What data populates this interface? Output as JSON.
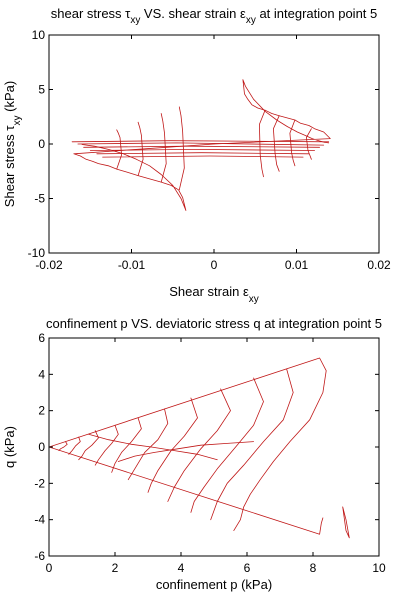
{
  "chart_data": [
    {
      "type": "line",
      "title_parts": [
        "shear stress ",
        "τ",
        "xy",
        " VS. shear strain ",
        "ε",
        "xy",
        " at integration point 5"
      ],
      "xlabel_parts": [
        "Shear strain ",
        "ε",
        "xy"
      ],
      "ylabel_parts": [
        "Shear stress ",
        "τ",
        "xy",
        " (kPa)"
      ],
      "xlim": [
        -0.02,
        0.02
      ],
      "ylim": [
        -10,
        10
      ],
      "xticks": [
        -0.02,
        -0.01,
        0,
        0.01,
        0.02
      ],
      "yticks": [
        -10,
        -5,
        0,
        5,
        10
      ],
      "xtick_labels": [
        "-0.02",
        "-0.01",
        "0",
        "0.01",
        "0.02"
      ],
      "ytick_labels": [
        "-10",
        "-5",
        "0",
        "5",
        "10"
      ],
      "grid": false,
      "color": "#c01818",
      "series": [
        {
          "x": [
            0,
            0.0141,
            0.0133,
            0.0122,
            0.0115,
            0.0105,
            0.0098,
            0.0088,
            0.0079,
            0.007,
            0.0062,
            0.0053,
            0.0046,
            0.0041,
            0.0037,
            0.0035,
            0.0038,
            0.0048,
            0.0062,
            0.0076,
            0.0089,
            0.0101,
            0.011,
            0.0119,
            0.0127,
            0.0134,
            0.0139
          ],
          "y": [
            0,
            0.5,
            1.1,
            1.4,
            1.7,
            1.9,
            2.2,
            2.4,
            2.6,
            2.8,
            3.1,
            3.3,
            3.6,
            4.1,
            4.6,
            5.9,
            5.3,
            4.1,
            3.0,
            2.2,
            1.6,
            1.1,
            0.8,
            0.5,
            0.3,
            0.15,
            0.1
          ]
        },
        {
          "x": [
            0,
            -0.017,
            -0.0162,
            -0.0155,
            -0.0147,
            -0.014,
            -0.0128,
            -0.0118,
            -0.0105,
            -0.0092,
            -0.0078,
            -0.0064,
            -0.0052,
            -0.0043,
            -0.0038,
            -0.0034,
            -0.004,
            -0.005,
            -0.0064,
            -0.0078,
            -0.0094,
            -0.011,
            -0.0128,
            -0.0145,
            -0.016
          ],
          "y": [
            0,
            -0.9,
            -1.1,
            -1.4,
            -1.6,
            -1.8,
            -2.0,
            -2.3,
            -2.6,
            -2.9,
            -3.2,
            -3.5,
            -3.8,
            -4.2,
            -4.9,
            -6.1,
            -5.0,
            -3.8,
            -2.8,
            -2.0,
            -1.4,
            -0.9,
            -0.5,
            -0.2,
            -0.05
          ]
        },
        {
          "x": [
            -0.0172,
            -0.0052,
            0.0139
          ],
          "y": [
            0.2,
            0.3,
            0.2
          ]
        },
        {
          "x": [
            -0.0165,
            -0.0045,
            0.0133
          ],
          "y": [
            0.0,
            0.1,
            -0.1
          ]
        },
        {
          "x": [
            -0.0158,
            -0.0032,
            0.0128
          ],
          "y": [
            -0.3,
            -0.2,
            -0.3
          ]
        },
        {
          "x": [
            -0.015,
            -0.0025,
            0.0122
          ],
          "y": [
            -0.6,
            -0.5,
            -0.6
          ]
        },
        {
          "x": [
            -0.0142,
            -0.0015,
            0.0115
          ],
          "y": [
            -0.9,
            -0.8,
            -0.9
          ]
        },
        {
          "x": [
            -0.0135,
            -0.0005,
            0.0108
          ],
          "y": [
            -1.2,
            -1.1,
            -1.2
          ]
        },
        {
          "x": [
            0.0118,
            0.0112,
            0.0114,
            0.0116,
            0.0118
          ],
          "y": [
            1.4,
            0.6,
            -0.6,
            -1.0,
            -1.4
          ]
        },
        {
          "x": [
            0.0098,
            0.0092,
            0.0094,
            0.0096,
            0.0098
          ],
          "y": [
            2.2,
            1.0,
            -0.8,
            -1.5,
            -2.0
          ]
        },
        {
          "x": [
            0.0079,
            0.0072,
            0.0074,
            0.0076,
            0.0079
          ],
          "y": [
            2.6,
            1.4,
            -0.9,
            -1.9,
            -2.5
          ]
        },
        {
          "x": [
            0.0062,
            0.0055,
            0.0056,
            0.0058,
            0.006
          ],
          "y": [
            3.1,
            1.8,
            -1.0,
            -2.3,
            -3.0
          ]
        },
        {
          "x": [
            -0.0118,
            -0.0112,
            -0.0114,
            -0.0116,
            -0.0118
          ],
          "y": [
            -2.3,
            -1.0,
            0.6,
            1.0,
            1.3
          ]
        },
        {
          "x": [
            -0.0092,
            -0.0086,
            -0.0088,
            -0.009,
            -0.0092
          ],
          "y": [
            -2.9,
            -1.4,
            0.8,
            1.5,
            2.0
          ]
        },
        {
          "x": [
            -0.0064,
            -0.0058,
            -0.006,
            -0.0062,
            -0.0064
          ],
          "y": [
            -3.5,
            -1.8,
            1.0,
            2.1,
            2.8
          ]
        },
        {
          "x": [
            -0.0042,
            -0.0036,
            -0.0038,
            -0.004,
            -0.0042
          ],
          "y": [
            -4.2,
            -2.2,
            1.2,
            2.6,
            3.4
          ]
        }
      ]
    },
    {
      "type": "line",
      "title_parts": [
        "confinement p VS. deviatoric stress q at integration point 5"
      ],
      "xlabel_parts": [
        "confinement p (kPa)"
      ],
      "ylabel_parts": [
        "q (kPa)"
      ],
      "xlim": [
        0,
        10
      ],
      "ylim": [
        -6,
        6
      ],
      "xticks": [
        0,
        2,
        4,
        6,
        8,
        10
      ],
      "yticks": [
        -6,
        -4,
        -2,
        0,
        2,
        4,
        6
      ],
      "xtick_labels": [
        "0",
        "2",
        "4",
        "6",
        "8",
        "10"
      ],
      "ytick_labels": [
        "-6",
        "-4",
        "-2",
        "0",
        "2",
        "4",
        "6"
      ],
      "grid": false,
      "color": "#c01818",
      "series": [
        {
          "x": [
            0,
            8.2,
            8.4,
            8.3,
            7.9,
            7.3,
            6.8,
            6.4,
            6.1,
            5.9,
            5.8,
            5.6
          ],
          "y": [
            0,
            4.9,
            4.2,
            3.0,
            1.5,
            0.3,
            -0.8,
            -1.8,
            -2.6,
            -3.3,
            -4.0,
            -4.6
          ]
        },
        {
          "x": [
            0,
            8.2,
            8.25,
            8.3
          ],
          "y": [
            0,
            -4.8,
            -4.2,
            -3.9
          ]
        },
        {
          "x": [
            8.9,
            9.0,
            9.1,
            9.0,
            8.9
          ],
          "y": [
            -3.3,
            -4.0,
            -5.0,
            -4.6,
            -3.3
          ]
        },
        {
          "x": [
            7.2,
            7.4,
            7.1,
            6.5,
            5.9,
            5.4,
            5.1,
            4.9
          ],
          "y": [
            4.3,
            3.0,
            1.5,
            0.3,
            -1.0,
            -2.0,
            -3.0,
            -4.0
          ]
        },
        {
          "x": [
            6.2,
            6.5,
            6.2,
            5.7,
            5.1,
            4.7,
            4.4,
            4.3
          ],
          "y": [
            3.8,
            2.5,
            1.2,
            0.1,
            -1.2,
            -2.2,
            -3.0,
            -3.6
          ]
        },
        {
          "x": [
            5.2,
            5.5,
            5.1,
            4.6,
            4.1,
            3.8,
            3.6
          ],
          "y": [
            3.2,
            2.0,
            0.9,
            -0.1,
            -1.3,
            -2.2,
            -3.0
          ]
        },
        {
          "x": [
            4.3,
            4.5,
            4.1,
            3.7,
            3.3,
            3.1,
            3.0
          ],
          "y": [
            2.7,
            1.6,
            0.6,
            -0.2,
            -1.3,
            -2.0,
            -2.5
          ]
        },
        {
          "x": [
            3.5,
            3.6,
            3.3,
            2.9,
            2.6,
            2.4
          ],
          "y": [
            2.1,
            1.3,
            0.4,
            -0.3,
            -1.2,
            -1.8
          ]
        },
        {
          "x": [
            2.7,
            2.8,
            2.5,
            2.2,
            2.0,
            1.9
          ],
          "y": [
            1.6,
            1.0,
            0.3,
            -0.3,
            -0.9,
            -1.4
          ]
        },
        {
          "x": [
            2.0,
            2.1,
            1.9,
            1.7,
            1.5,
            1.4
          ],
          "y": [
            1.2,
            0.7,
            0.2,
            -0.2,
            -0.7,
            -1.0
          ]
        },
        {
          "x": [
            1.4,
            1.5,
            1.3,
            1.1,
            1.0,
            0.9
          ],
          "y": [
            0.9,
            0.5,
            0.1,
            -0.2,
            -0.5,
            -0.7
          ]
        },
        {
          "x": [
            0.9,
            0.95,
            0.8,
            0.7,
            0.6
          ],
          "y": [
            0.55,
            0.3,
            0.05,
            -0.2,
            -0.4
          ]
        },
        {
          "x": [
            0.5,
            0.55,
            0.45,
            0.35,
            0.3
          ],
          "y": [
            0.3,
            0.15,
            0.0,
            -0.1,
            -0.2
          ]
        },
        {
          "x": [
            2.1,
            2.6,
            3.2,
            3.9,
            4.6,
            5.4,
            6.2
          ],
          "y": [
            -0.8,
            -0.5,
            -0.3,
            -0.1,
            0.1,
            0.2,
            0.3
          ]
        },
        {
          "x": [
            1.2,
            1.8,
            2.5,
            3.1,
            3.8,
            4.5,
            5.1
          ],
          "y": [
            0.7,
            0.4,
            0.15,
            0.0,
            -0.2,
            -0.4,
            -0.7
          ]
        }
      ]
    }
  ]
}
